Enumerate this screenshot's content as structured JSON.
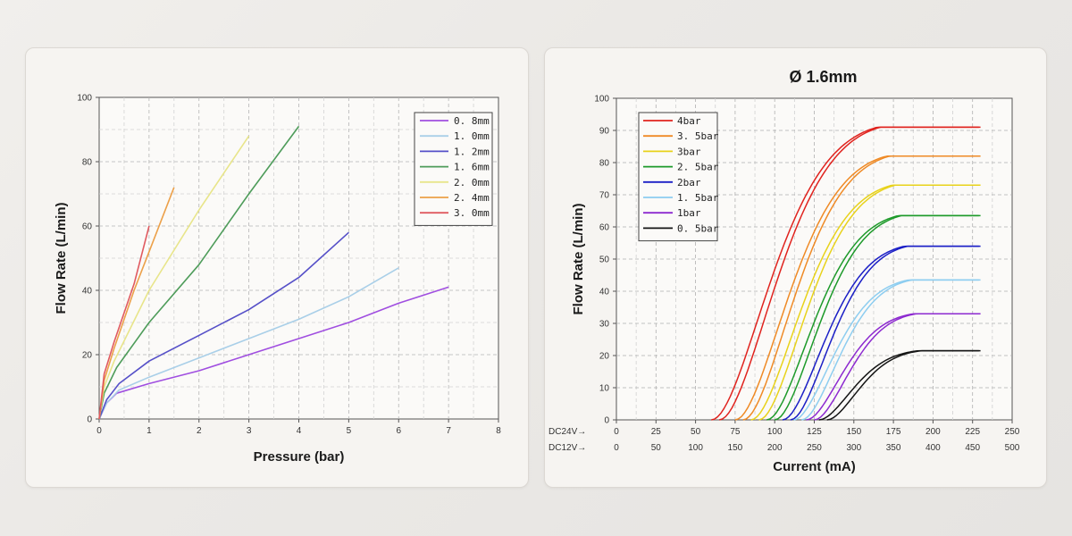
{
  "chart_data": [
    {
      "type": "line",
      "title": "",
      "xlabel": "Pressure (bar)",
      "ylabel": "Flow Rate (L/min)",
      "xlim": [
        0,
        8
      ],
      "ylim": [
        0,
        100
      ],
      "xticks": [
        "0",
        "1",
        "2",
        "3",
        "4",
        "5",
        "6",
        "7",
        "8"
      ],
      "yticks": [
        "0",
        "20",
        "40",
        "60",
        "80",
        "100"
      ],
      "grid": true,
      "legend_position": "top-right",
      "series": [
        {
          "name": "0. 8mm",
          "color": "#a04ee0",
          "points": [
            [
              0,
              0
            ],
            [
              0.15,
              5
            ],
            [
              0.35,
              8
            ],
            [
              1,
              11
            ],
            [
              2,
              15
            ],
            [
              3,
              20
            ],
            [
              4,
              25
            ],
            [
              5,
              30
            ],
            [
              6,
              36
            ],
            [
              7,
              41
            ]
          ]
        },
        {
          "name": "1. 0mm",
          "color": "#a9cfe8",
          "points": [
            [
              0,
              0
            ],
            [
              0.15,
              5
            ],
            [
              0.4,
              9
            ],
            [
              1,
              13
            ],
            [
              2,
              19
            ],
            [
              3,
              25
            ],
            [
              4,
              31
            ],
            [
              5,
              38
            ],
            [
              6,
              47
            ]
          ]
        },
        {
          "name": "1. 2mm",
          "color": "#5650c8",
          "points": [
            [
              0,
              0
            ],
            [
              0.15,
              6
            ],
            [
              0.4,
              11
            ],
            [
              1,
              18
            ],
            [
              2,
              26
            ],
            [
              3,
              34
            ],
            [
              4,
              44
            ],
            [
              5,
              58
            ]
          ]
        },
        {
          "name": "1. 6mm",
          "color": "#4e9c5a",
          "points": [
            [
              0,
              0
            ],
            [
              0.1,
              8
            ],
            [
              0.35,
              16
            ],
            [
              1,
              30
            ],
            [
              2,
              48
            ],
            [
              3,
              70
            ],
            [
              4,
              91
            ]
          ]
        },
        {
          "name": "2. 0mm",
          "color": "#e8e58a",
          "points": [
            [
              0,
              0
            ],
            [
              0.1,
              10
            ],
            [
              0.3,
              18
            ],
            [
              1,
              40
            ],
            [
              2,
              65
            ],
            [
              3,
              88
            ]
          ]
        },
        {
          "name": "2. 4mm",
          "color": "#eca049",
          "points": [
            [
              0,
              0
            ],
            [
              0.1,
              12
            ],
            [
              0.3,
              22
            ],
            [
              0.7,
              40
            ],
            [
              1,
              52
            ],
            [
              1.5,
              72
            ]
          ]
        },
        {
          "name": "3. 0mm",
          "color": "#e05a60",
          "points": [
            [
              0,
              0
            ],
            [
              0.1,
              14
            ],
            [
              0.3,
              24
            ],
            [
              0.7,
              42
            ],
            [
              1,
              60
            ]
          ]
        }
      ]
    },
    {
      "type": "line",
      "title": "Ø 1.6mm",
      "xlabel": "Current (mA)",
      "ylabel": "Flow Rate (L/min)",
      "xlim": [
        0,
        250
      ],
      "ylim": [
        0,
        100
      ],
      "xticks_dc24": [
        "0",
        "25",
        "50",
        "75",
        "100",
        "125",
        "150",
        "175",
        "200",
        "225",
        "250"
      ],
      "xticks_dc12": [
        "0",
        "50",
        "100",
        "150",
        "200",
        "250",
        "300",
        "350",
        "400",
        "450",
        "500"
      ],
      "xaxis_prefix_dc24": "DC24V→",
      "xaxis_prefix_dc12": "DC12V→",
      "yticks": [
        "0",
        "10",
        "20",
        "30",
        "40",
        "50",
        "60",
        "70",
        "80",
        "90",
        "100"
      ],
      "grid": true,
      "legend_position": "top-left",
      "series": [
        {
          "name": "4bar",
          "color": "#e0231e",
          "start": 60,
          "end": 230,
          "max": 91,
          "offset": 5
        },
        {
          "name": "3. 5bar",
          "color": "#ef8a25",
          "start": 75,
          "end": 230,
          "max": 82,
          "offset": 5
        },
        {
          "name": "3bar",
          "color": "#e8d21a",
          "start": 85,
          "end": 230,
          "max": 73,
          "offset": 5
        },
        {
          "name": "2. 5bar",
          "color": "#1d9a2a",
          "start": 95,
          "end": 230,
          "max": 63.5,
          "offset": 5
        },
        {
          "name": "2bar",
          "color": "#1b1fc6",
          "start": 105,
          "end": 230,
          "max": 54,
          "offset": 5
        },
        {
          "name": "1. 5bar",
          "color": "#8dcdf0",
          "start": 112,
          "end": 230,
          "max": 43.5,
          "offset": 5
        },
        {
          "name": "1bar",
          "color": "#8d2ad0",
          "start": 120,
          "end": 230,
          "max": 33,
          "offset": 5
        },
        {
          "name": "0. 5bar",
          "color": "#151515",
          "start": 128,
          "end": 230,
          "max": 21.5,
          "offset": 5
        }
      ]
    }
  ]
}
